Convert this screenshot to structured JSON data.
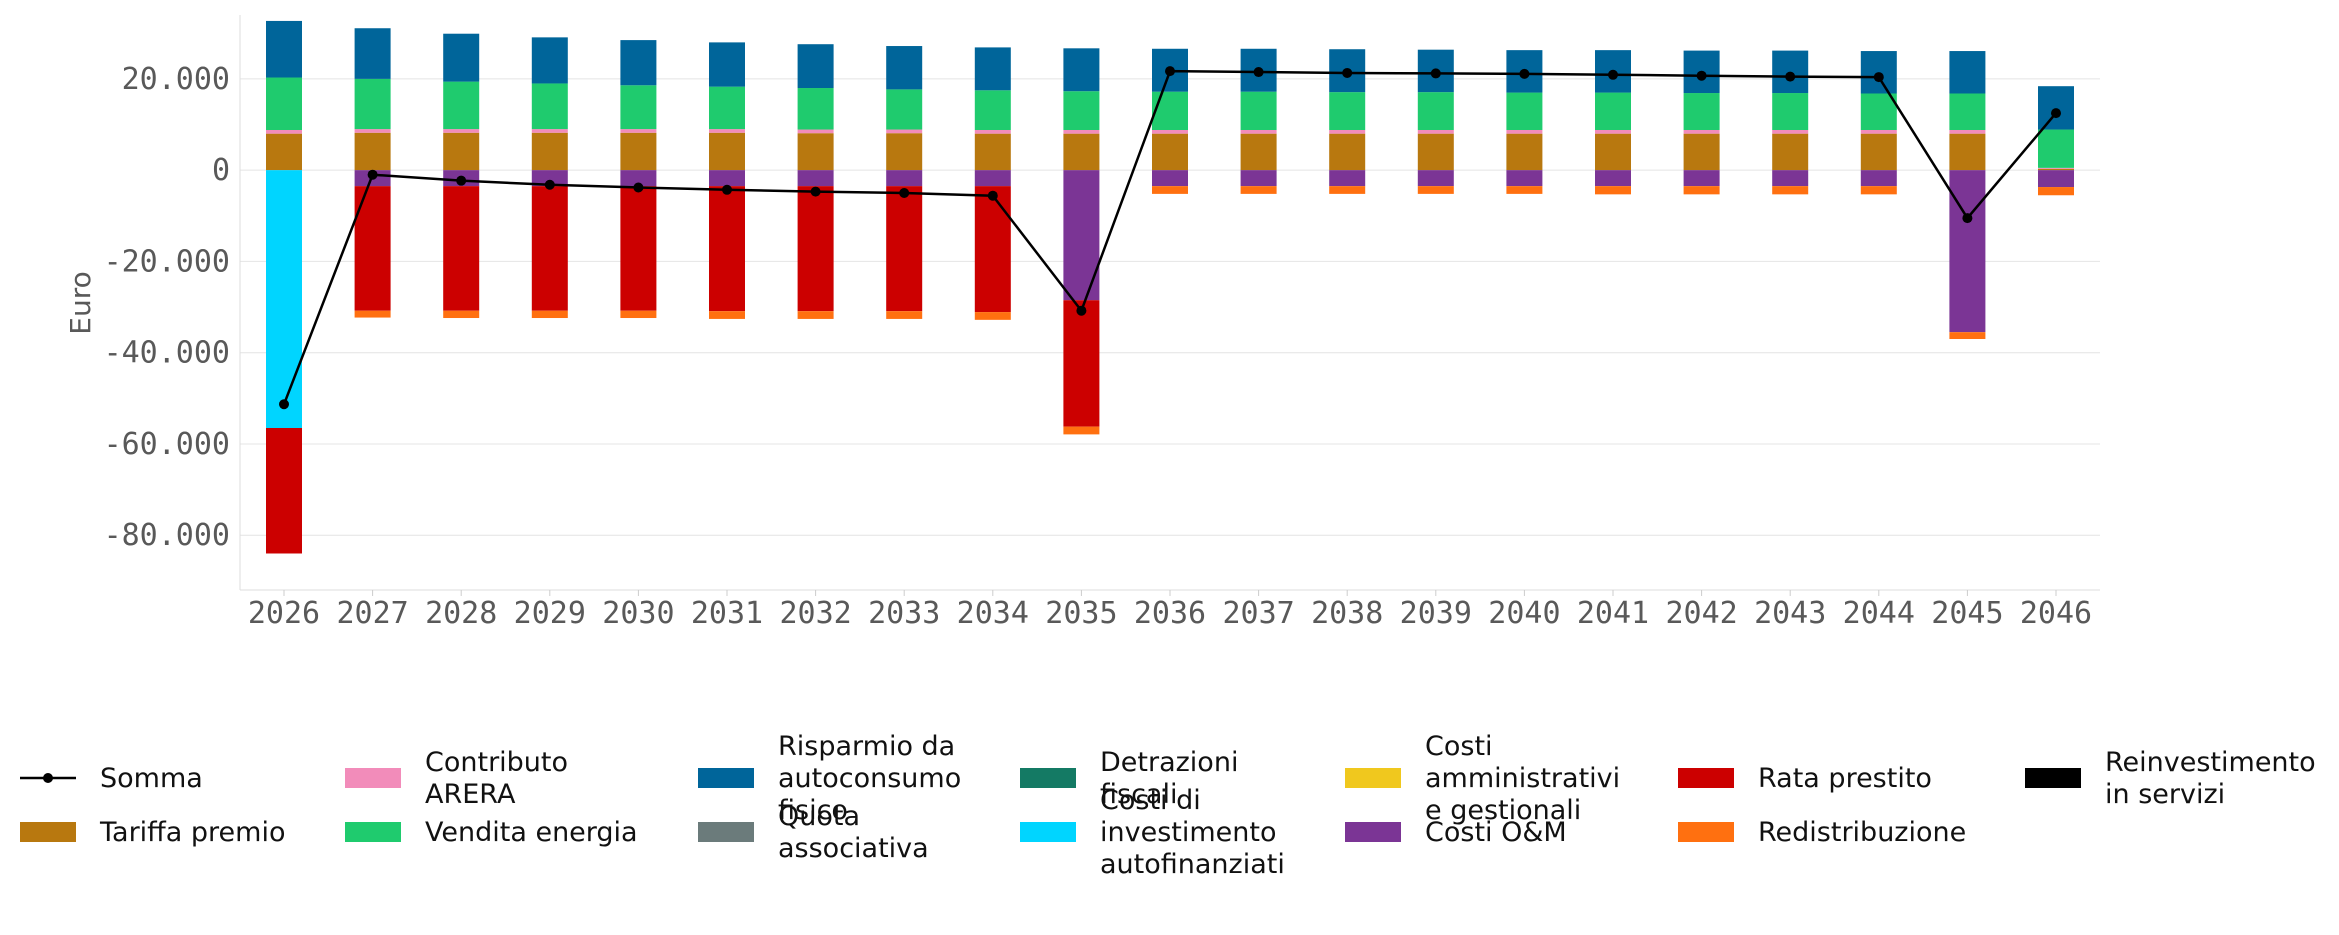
{
  "chart_data": {
    "type": "bar",
    "stacked": true,
    "ylabel": "Euro",
    "xlabel": "",
    "ylim": [
      -92000,
      34000
    ],
    "yticks": [
      -80000,
      -60000,
      -40000,
      -20000,
      0,
      20000
    ],
    "ytick_labels": [
      "-80.000",
      "-60.000",
      "-40.000",
      "-20.000",
      "0",
      "20.000"
    ],
    "grid": "horizontal",
    "legend_position": "bottom",
    "categories": [
      "2026",
      "2027",
      "2028",
      "2029",
      "2030",
      "2031",
      "2032",
      "2033",
      "2034",
      "2035",
      "2036",
      "2037",
      "2038",
      "2039",
      "2040",
      "2041",
      "2042",
      "2043",
      "2044",
      "2045",
      "2046"
    ],
    "positive_series": [
      {
        "name": "Tariffa premio",
        "color": "#b8780f",
        "values": [
          8000,
          8200,
          8200,
          8200,
          8200,
          8200,
          8100,
          8100,
          8000,
          8000,
          8000,
          8000,
          8000,
          8000,
          8000,
          8000,
          8000,
          8000,
          8000,
          8000,
          300
        ]
      },
      {
        "name": "Contributo ARERA",
        "color": "#f28cba",
        "values": [
          800,
          800,
          800,
          800,
          800,
          800,
          800,
          800,
          800,
          800,
          800,
          800,
          800,
          800,
          800,
          800,
          800,
          800,
          800,
          800,
          200
        ]
      },
      {
        "name": "Vendita energia",
        "color": "#1fcb6e",
        "values": [
          11500,
          11000,
          10400,
          10000,
          9600,
          9300,
          9100,
          8800,
          8700,
          8500,
          8400,
          8400,
          8300,
          8300,
          8200,
          8200,
          8100,
          8100,
          8000,
          8000,
          8400
        ]
      },
      {
        "name": "Risparmio da autoconsumo fisico",
        "color": "#00659a",
        "values": [
          12400,
          11100,
          10500,
          10100,
          9900,
          9700,
          9600,
          9500,
          9400,
          9400,
          9400,
          9400,
          9400,
          9300,
          9300,
          9300,
          9300,
          9300,
          9300,
          9300,
          9500
        ]
      }
    ],
    "negative_series": [
      {
        "name": "Costi di investimento autofinanziati",
        "color": "#00d5ff",
        "values": [
          -56500,
          0,
          0,
          0,
          0,
          0,
          0,
          0,
          0,
          0,
          0,
          0,
          0,
          0,
          0,
          0,
          0,
          0,
          0,
          0,
          0
        ]
      },
      {
        "name": "Costi O&M",
        "color": "#7b3595",
        "values": [
          0,
          -3500,
          -3500,
          -3500,
          -3500,
          -3500,
          -3500,
          -3500,
          -3500,
          -28500,
          -3500,
          -3500,
          -3500,
          -3500,
          -3500,
          -3500,
          -3500,
          -3500,
          -3500,
          -35500,
          -3700
        ]
      },
      {
        "name": "Rata prestito",
        "color": "#cc0000",
        "values": [
          -27500,
          -27300,
          -27300,
          -27300,
          -27300,
          -27400,
          -27400,
          -27400,
          -27600,
          -27700,
          0,
          0,
          0,
          0,
          0,
          0,
          0,
          0,
          0,
          0,
          0
        ]
      },
      {
        "name": "Redistribuzione",
        "color": "#ff7010",
        "values": [
          0,
          -1500,
          -1600,
          -1600,
          -1600,
          -1700,
          -1700,
          -1700,
          -1700,
          -1700,
          -1700,
          -1700,
          -1700,
          -1700,
          -1700,
          -1800,
          -1800,
          -1800,
          -1800,
          -1500,
          -1800
        ]
      }
    ],
    "line_series": {
      "name": "Somma",
      "color": "#000000",
      "values": [
        -51300,
        -1000,
        -2300,
        -3200,
        -3800,
        -4300,
        -4700,
        -5000,
        -5600,
        -30800,
        21700,
        21500,
        21300,
        21200,
        21100,
        20900,
        20700,
        20500,
        20400,
        -10500,
        12500
      ]
    },
    "legend": [
      {
        "name": "Somma",
        "kind": "line",
        "color": "#000000"
      },
      {
        "name": "Tariffa premio",
        "kind": "patch",
        "color": "#b8780f"
      },
      {
        "name": "Contributo ARERA",
        "kind": "patch",
        "color": "#f28cba"
      },
      {
        "name": "Vendita energia",
        "kind": "patch",
        "color": "#1fcb6e"
      },
      {
        "name": "Risparmio da autoconsumo fisico",
        "kind": "patch",
        "color": "#00659a"
      },
      {
        "name": "Quota associativa",
        "kind": "patch",
        "color": "#6b7b7b"
      },
      {
        "name": "Detrazioni fiscali",
        "kind": "patch",
        "color": "#147a64"
      },
      {
        "name": "Costi di investimento autofinanziati",
        "kind": "patch",
        "color": "#00d5ff"
      },
      {
        "name": "Costi amministrativi e gestionali",
        "kind": "patch",
        "color": "#f0c81e"
      },
      {
        "name": "Costi O&M",
        "kind": "patch",
        "color": "#7b3595"
      },
      {
        "name": "Rata prestito",
        "kind": "patch",
        "color": "#cc0000"
      },
      {
        "name": "Redistribuzione",
        "kind": "patch",
        "color": "#ff7010"
      },
      {
        "name": "Reinvestimento in servizi",
        "kind": "patch",
        "color": "#000000"
      }
    ]
  }
}
